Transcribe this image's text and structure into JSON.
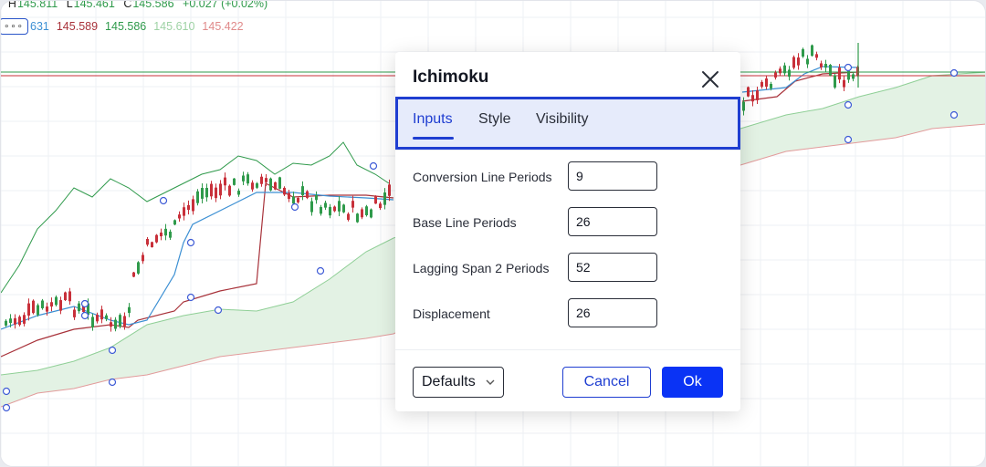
{
  "legend": {
    "ohlc": [
      {
        "key": "H",
        "value": "145.811"
      },
      {
        "key": "L",
        "value": "145.461"
      },
      {
        "key": "C",
        "value": "145.586"
      }
    ],
    "change": "+0.027 (+0.02%)",
    "values": [
      {
        "text": "631",
        "color": "#3b8fd3"
      },
      {
        "text": "145.589",
        "color": "#a8323a"
      },
      {
        "text": "145.586",
        "color": "#2f9a4b"
      },
      {
        "text": "145.610",
        "color": "#9ed2a4"
      },
      {
        "text": "145.422",
        "color": "#e08a8a"
      }
    ],
    "more_icon": "ellipsis-icon"
  },
  "dialog": {
    "title": "Ichimoku",
    "close_icon": "close-icon",
    "tabs": [
      {
        "label": "Inputs",
        "active": true
      },
      {
        "label": "Style",
        "active": false
      },
      {
        "label": "Visibility",
        "active": false
      }
    ],
    "fields": [
      {
        "label": "Conversion Line Periods",
        "value": "9"
      },
      {
        "label": "Base Line Periods",
        "value": "26"
      },
      {
        "label": "Lagging Span 2 Periods",
        "value": "52"
      },
      {
        "label": "Displacement",
        "value": "26"
      }
    ],
    "defaults_label": "Defaults",
    "cancel_label": "Cancel",
    "ok_label": "Ok"
  },
  "colors": {
    "accent": "#1f3ed1",
    "ok_button": "#0a33f5",
    "bull_candle": "#2f9a4b",
    "bear_candle": "#c8303a",
    "conversion_line": "#3b8fd3",
    "base_line": "#a8323a",
    "lagging_span": "#2f9a4b",
    "cloud_fill": "#e3f2e4"
  }
}
